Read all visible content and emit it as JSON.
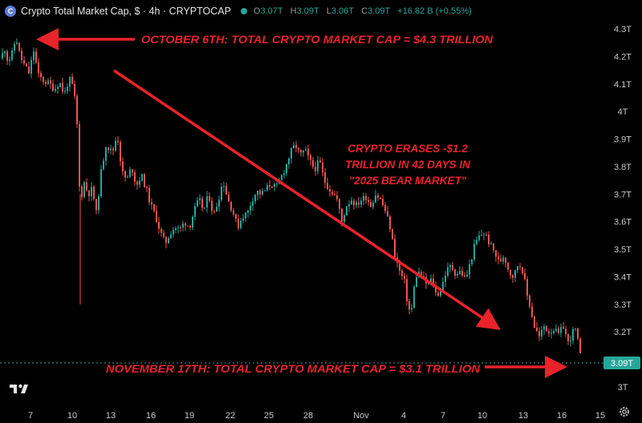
{
  "header": {
    "symbol_title": "Crypto Total Market Cap, $ · 4h · CRYPTOCAP",
    "open_key": "O",
    "open_val": "3.07T",
    "high_key": "H",
    "high_val": "3.09T",
    "low_key": "L",
    "low_val": "3.06T",
    "close_key": "C",
    "close_val": "3.09T",
    "change": "+16.82 B (+0.55%)",
    "accent": "#26a69a"
  },
  "icons": {
    "logo": "crypto-cap-logo-icon",
    "tradingview": "tradingview-logo-icon",
    "settings": "gear-icon"
  },
  "colors": {
    "up": "#26a69a",
    "down": "#ef5350",
    "annotation": "#e8232a",
    "price_badge": "#26a69a"
  },
  "annotations": {
    "top": "OCTOBER 6TH: TOTAL CRYPTO MARKET CAP = $4.3 TRILLION",
    "middle": [
      "CRYPTO ERASES -$1.2",
      "TRILLION IN 42 DAYS IN",
      "\"2025 BEAR MARKET\""
    ],
    "bottom": "NOVEMBER 17TH: TOTAL CRYPTO MARKET CAP = $3.1 TRILLION"
  },
  "price_badge": "3.09T",
  "chart_data": {
    "type": "candlestick",
    "title": "Crypto Total Market Cap, $ · 4h · CRYPTOCAP",
    "y_unit": "T",
    "ylim": [
      2.92,
      4.34
    ],
    "y_ticks": [
      "4.3T",
      "4.2T",
      "4.1T",
      "4T",
      "3.9T",
      "3.8T",
      "3.7T",
      "3.6T",
      "3.5T",
      "3.4T",
      "3.3T",
      "3.2T",
      "3.1T",
      "3T"
    ],
    "x_ticks": [
      "7",
      "10",
      "13",
      "16",
      "19",
      "22",
      "25",
      "28",
      "Nov",
      "4",
      "7",
      "10",
      "13",
      "16",
      "15"
    ],
    "last_price": 3.09,
    "path": [
      [
        0,
        4.16
      ],
      [
        5,
        4.24
      ],
      [
        10,
        4.18
      ],
      [
        15,
        4.21
      ],
      [
        20,
        4.27
      ],
      [
        25,
        4.2
      ],
      [
        30,
        4.17
      ],
      [
        36,
        4.14
      ],
      [
        42,
        4.22
      ],
      [
        48,
        4.13
      ],
      [
        55,
        4.11
      ],
      [
        62,
        4.1
      ],
      [
        68,
        4.08
      ],
      [
        74,
        4.11
      ],
      [
        80,
        4.06
      ],
      [
        86,
        4.12
      ],
      [
        92,
        4.08
      ],
      [
        96,
        3.95
      ],
      [
        100,
        3.65
      ],
      [
        104,
        3.75
      ],
      [
        110,
        3.7
      ],
      [
        115,
        3.72
      ],
      [
        120,
        3.63
      ],
      [
        126,
        3.78
      ],
      [
        132,
        3.88
      ],
      [
        140,
        3.85
      ],
      [
        146,
        3.92
      ],
      [
        152,
        3.78
      ],
      [
        158,
        3.75
      ],
      [
        164,
        3.8
      ],
      [
        170,
        3.73
      ],
      [
        176,
        3.77
      ],
      [
        182,
        3.72
      ],
      [
        188,
        3.66
      ],
      [
        194,
        3.62
      ],
      [
        200,
        3.56
      ],
      [
        206,
        3.52
      ],
      [
        212,
        3.56
      ],
      [
        218,
        3.58
      ],
      [
        224,
        3.57
      ],
      [
        230,
        3.6
      ],
      [
        236,
        3.58
      ],
      [
        242,
        3.64
      ],
      [
        248,
        3.68
      ],
      [
        254,
        3.64
      ],
      [
        260,
        3.7
      ],
      [
        266,
        3.62
      ],
      [
        272,
        3.68
      ],
      [
        278,
        3.75
      ],
      [
        284,
        3.68
      ],
      [
        290,
        3.64
      ],
      [
        296,
        3.58
      ],
      [
        302,
        3.62
      ],
      [
        308,
        3.63
      ],
      [
        314,
        3.68
      ],
      [
        320,
        3.71
      ],
      [
        326,
        3.7
      ],
      [
        332,
        3.72
      ],
      [
        338,
        3.74
      ],
      [
        344,
        3.72
      ],
      [
        350,
        3.76
      ],
      [
        356,
        3.8
      ],
      [
        362,
        3.85
      ],
      [
        368,
        3.88
      ],
      [
        374,
        3.84
      ],
      [
        380,
        3.86
      ],
      [
        386,
        3.82
      ],
      [
        392,
        3.79
      ],
      [
        398,
        3.82
      ],
      [
        404,
        3.75
      ],
      [
        410,
        3.72
      ],
      [
        416,
        3.7
      ],
      [
        420,
        3.68
      ],
      [
        426,
        3.6
      ],
      [
        432,
        3.66
      ],
      [
        438,
        3.68
      ],
      [
        444,
        3.66
      ],
      [
        450,
        3.68
      ],
      [
        456,
        3.69
      ],
      [
        462,
        3.66
      ],
      [
        468,
        3.7
      ],
      [
        474,
        3.68
      ],
      [
        480,
        3.64
      ],
      [
        486,
        3.58
      ],
      [
        492,
        3.48
      ],
      [
        498,
        3.42
      ],
      [
        504,
        3.38
      ],
      [
        508,
        3.3
      ],
      [
        512,
        3.26
      ],
      [
        516,
        3.36
      ],
      [
        520,
        3.42
      ],
      [
        526,
        3.4
      ],
      [
        532,
        3.37
      ],
      [
        538,
        3.39
      ],
      [
        544,
        3.33
      ],
      [
        550,
        3.36
      ],
      [
        556,
        3.42
      ],
      [
        562,
        3.44
      ],
      [
        568,
        3.41
      ],
      [
        574,
        3.42
      ],
      [
        580,
        3.39
      ],
      [
        586,
        3.45
      ],
      [
        592,
        3.52
      ],
      [
        598,
        3.55
      ],
      [
        604,
        3.56
      ],
      [
        610,
        3.52
      ],
      [
        616,
        3.49
      ],
      [
        622,
        3.45
      ],
      [
        628,
        3.48
      ],
      [
        634,
        3.42
      ],
      [
        640,
        3.4
      ],
      [
        646,
        3.45
      ],
      [
        652,
        3.42
      ],
      [
        656,
        3.34
      ],
      [
        660,
        3.3
      ],
      [
        666,
        3.22
      ],
      [
        672,
        3.18
      ],
      [
        678,
        3.22
      ],
      [
        684,
        3.2
      ],
      [
        690,
        3.21
      ],
      [
        696,
        3.19
      ],
      [
        702,
        3.22
      ],
      [
        708,
        3.16
      ],
      [
        714,
        3.2
      ],
      [
        718,
        3.21
      ],
      [
        722,
        3.12
      ],
      [
        726,
        3.09
      ]
    ]
  }
}
